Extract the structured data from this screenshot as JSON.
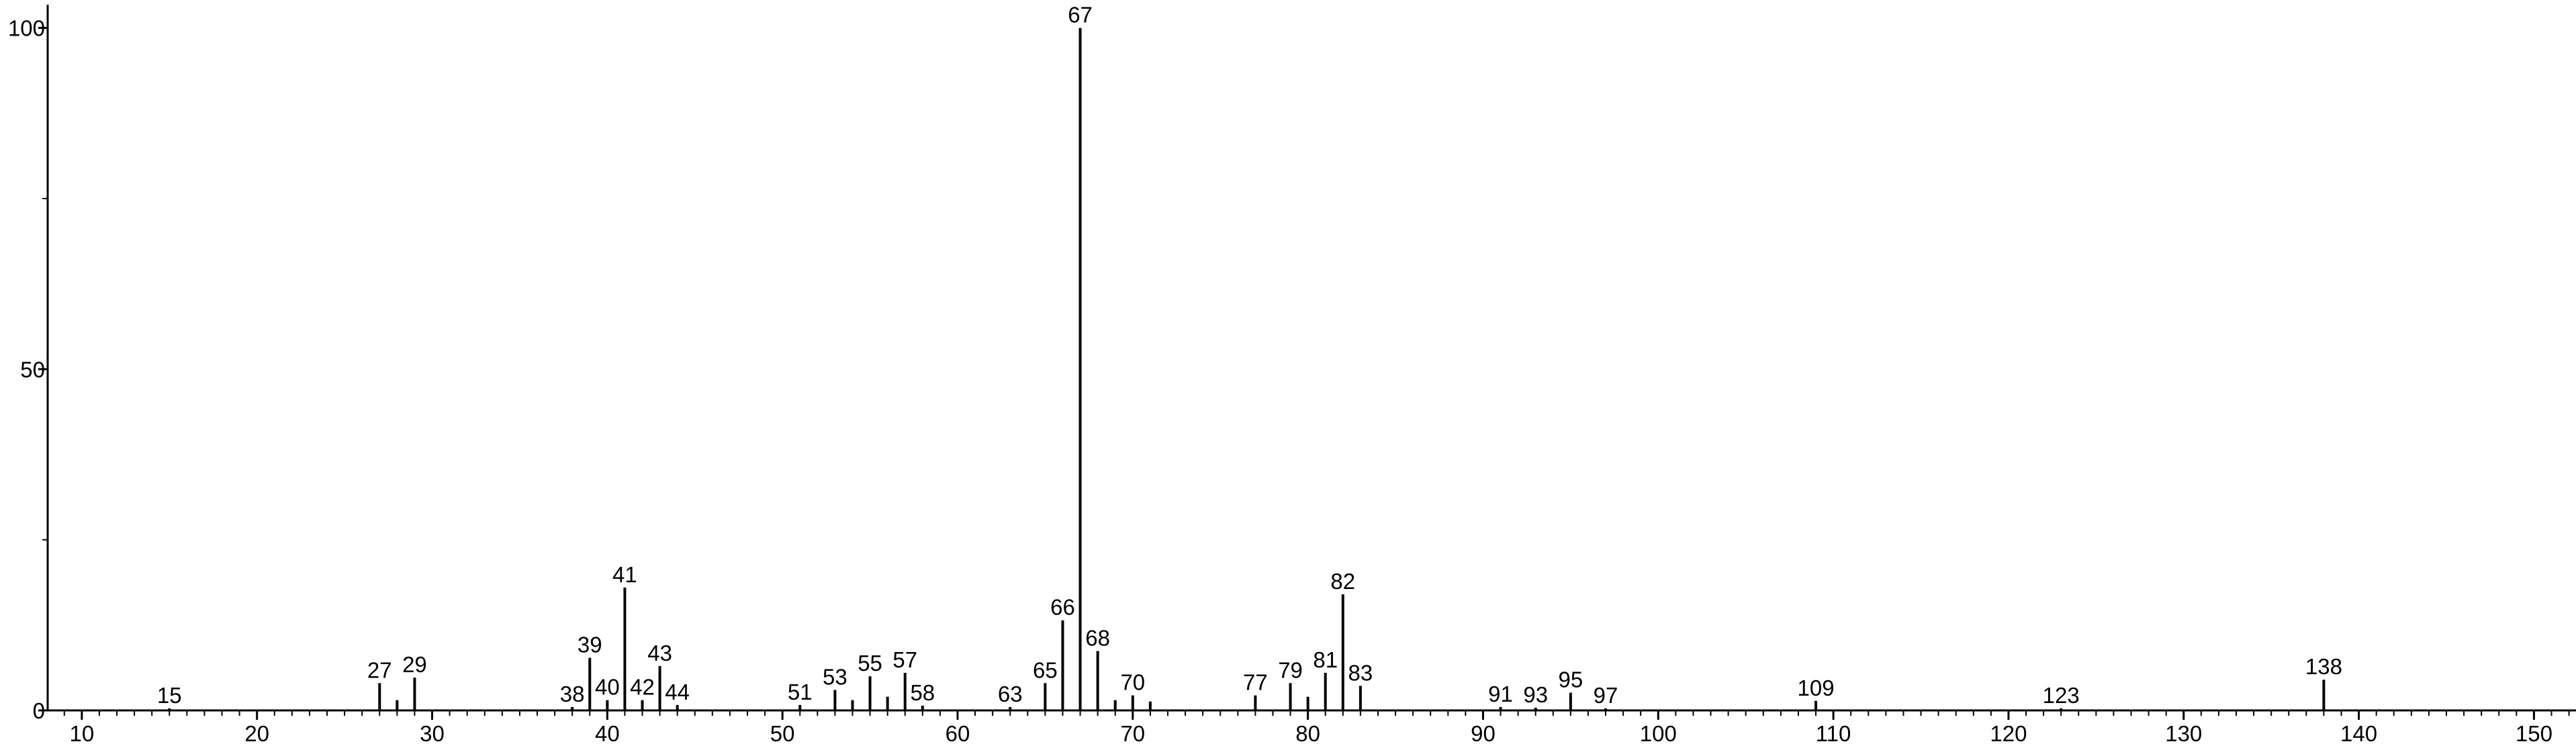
{
  "chart_data": {
    "type": "stem",
    "x": [
      15,
      27,
      28,
      29,
      38,
      39,
      40,
      41,
      42,
      43,
      44,
      51,
      53,
      54,
      55,
      56,
      57,
      58,
      63,
      65,
      66,
      67,
      68,
      69,
      70,
      71,
      77,
      79,
      80,
      81,
      82,
      83,
      91,
      93,
      95,
      97,
      109,
      123,
      138
    ],
    "values": [
      0.3,
      4,
      1.5,
      4.8,
      0.5,
      7.7,
      1.5,
      18,
      1.5,
      6.5,
      0.8,
      0.8,
      3,
      1.5,
      5,
      2,
      5.5,
      0.7,
      0.5,
      4,
      13.2,
      100,
      8.7,
      1.5,
      2.2,
      1.3,
      2.2,
      4,
      2,
      5.5,
      17,
      3.6,
      0.5,
      0.4,
      2.6,
      0.3,
      1.4,
      0.3,
      4.5
    ],
    "peak_labels": [
      "15",
      "27",
      null,
      "29",
      "38",
      "39",
      "40",
      "41",
      "42",
      "43",
      "44",
      "51",
      "53",
      null,
      "55",
      null,
      "57",
      "58",
      "63",
      "65",
      "66",
      "67",
      "68",
      null,
      "70",
      null,
      "77",
      "79",
      null,
      "81",
      "82",
      "83",
      "91",
      "93",
      "95",
      "97",
      "109",
      "123",
      "138"
    ],
    "color": "#000000",
    "xlim": [
      8.05,
      152.4
    ],
    "ylim": [
      0,
      103.4
    ],
    "xticks": [
      10,
      20,
      30,
      40,
      50,
      60,
      70,
      80,
      90,
      100,
      110,
      120,
      130,
      140,
      150
    ],
    "xminorticks": [
      9,
      11,
      12,
      13,
      14,
      15,
      16,
      17,
      18,
      19,
      21,
      22,
      23,
      24,
      25,
      26,
      27,
      28,
      29,
      31,
      32,
      33,
      34,
      35,
      36,
      37,
      38,
      39,
      41,
      42,
      43,
      44,
      45,
      46,
      47,
      48,
      49,
      51,
      52,
      53,
      54,
      55,
      56,
      57,
      58,
      59,
      61,
      62,
      63,
      64,
      65,
      66,
      67,
      68,
      69,
      71,
      72,
      73,
      74,
      75,
      76,
      77,
      78,
      79,
      81,
      82,
      83,
      84,
      85,
      86,
      87,
      88,
      89,
      91,
      92,
      93,
      94,
      95,
      96,
      97,
      98,
      99,
      101,
      102,
      103,
      104,
      105,
      106,
      107,
      108,
      109,
      111,
      112,
      113,
      114,
      115,
      116,
      117,
      118,
      119,
      121,
      122,
      123,
      124,
      125,
      126,
      127,
      128,
      129,
      131,
      132,
      133,
      134,
      135,
      136,
      137,
      138,
      139,
      141,
      142,
      143,
      144,
      145,
      146,
      147,
      148,
      149,
      151,
      152
    ],
    "yticks": [
      0,
      50,
      100
    ],
    "yminorticks": [
      25,
      75
    ]
  }
}
